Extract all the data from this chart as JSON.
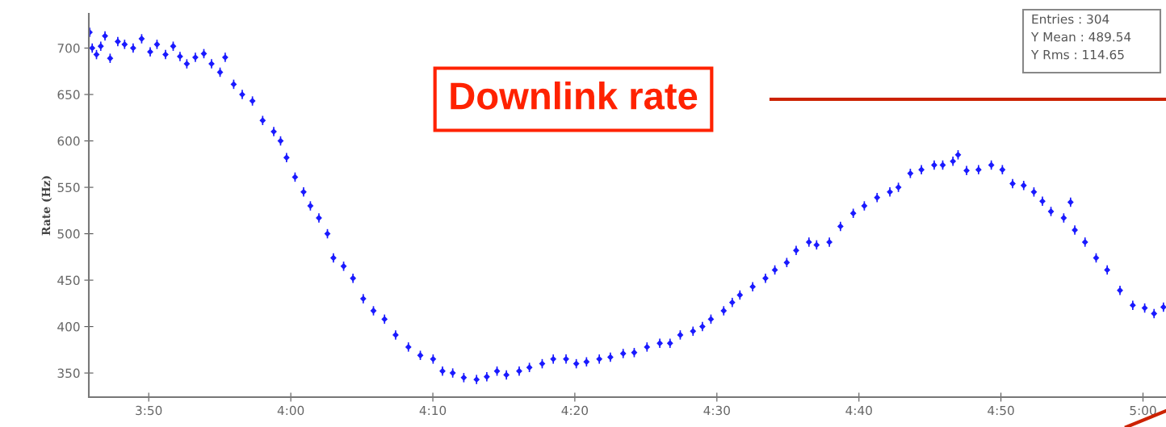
{
  "chart_data": {
    "type": "scatter",
    "ylabel": "Rate (Hz)",
    "annotations": [
      "Downlink rate",
      "Entries : 304",
      "Y Mean : 489.54",
      "Y Rms : 114.65"
    ],
    "xlim": [
      3.763,
      5.027
    ],
    "ylim": [
      324,
      737
    ],
    "xticks": [
      {
        "value": 3.8333,
        "label": "3:50"
      },
      {
        "value": 4.0,
        "label": "4:00"
      },
      {
        "value": 4.1667,
        "label": "4:10"
      },
      {
        "value": 4.3333,
        "label": "4:20"
      },
      {
        "value": 4.5,
        "label": "4:30"
      },
      {
        "value": 4.6667,
        "label": "4:40"
      },
      {
        "value": 4.8333,
        "label": "4:50"
      },
      {
        "value": 5.0,
        "label": "5:00"
      }
    ],
    "yticks": [
      350,
      400,
      450,
      500,
      550,
      600,
      650,
      700
    ],
    "grid": false,
    "marker": "diamond",
    "series": [
      {
        "color": "#1a1aff",
        "x": [
          3.764,
          3.767,
          3.772,
          3.777,
          3.782,
          3.788,
          3.797,
          3.805,
          3.815,
          3.825,
          3.835,
          3.843,
          3.853,
          3.862,
          3.87,
          3.878,
          3.888,
          3.898,
          3.907,
          3.917,
          3.923,
          3.933,
          3.943,
          3.955,
          3.967,
          3.98,
          3.988,
          3.995,
          4.005,
          4.015,
          4.023,
          4.033,
          4.043,
          4.05,
          4.062,
          4.073,
          4.085,
          4.097,
          4.11,
          4.123,
          4.138,
          4.152,
          4.167,
          4.178,
          4.19,
          4.203,
          4.218,
          4.23,
          4.242,
          4.253,
          4.268,
          4.28,
          4.295,
          4.308,
          4.323,
          4.335,
          4.347,
          4.362,
          4.375,
          4.39,
          4.403,
          4.418,
          4.433,
          4.445,
          4.457,
          4.472,
          4.483,
          4.493,
          4.508,
          4.518,
          4.527,
          4.542,
          4.557,
          4.568,
          4.582,
          4.593,
          4.608,
          4.617,
          4.632,
          4.645,
          4.66,
          4.673,
          4.688,
          4.703,
          4.713,
          4.727,
          4.74,
          4.755,
          4.765,
          4.777,
          4.783,
          4.793,
          4.807,
          4.822,
          4.835,
          4.847,
          4.86,
          4.872,
          4.882,
          4.892,
          4.907,
          4.915,
          4.92,
          4.932,
          4.945,
          4.958,
          4.973,
          4.988,
          5.002,
          5.013,
          5.024
        ],
        "values": [
          717,
          700,
          693,
          702,
          713,
          689,
          707,
          704,
          700,
          710,
          696,
          704,
          693,
          702,
          691,
          683,
          690,
          694,
          683,
          674,
          690,
          661,
          650,
          643,
          622,
          610,
          600,
          582,
          561,
          545,
          530,
          517,
          500,
          474,
          465,
          452,
          430,
          417,
          408,
          391,
          378,
          369,
          365,
          352,
          350,
          345,
          343,
          346,
          352,
          348,
          352,
          356,
          360,
          365,
          365,
          360,
          362,
          365,
          367,
          371,
          372,
          378,
          382,
          382,
          391,
          395,
          400,
          408,
          417,
          426,
          434,
          443,
          452,
          461,
          469,
          482,
          491,
          488,
          491,
          508,
          522,
          530,
          539,
          545,
          550,
          565,
          569,
          574,
          574,
          578,
          585,
          568,
          569,
          574,
          569,
          554,
          552,
          545,
          535,
          524,
          517,
          534,
          504,
          491,
          474,
          461,
          439,
          423,
          420,
          414,
          421
        ],
        "errors": [
          5,
          5,
          5,
          5,
          5,
          5,
          5,
          5,
          5,
          5,
          5,
          5,
          5,
          5,
          5,
          5,
          5,
          5,
          5,
          5,
          5,
          5,
          5,
          5,
          5,
          5,
          5,
          5,
          5,
          5,
          5,
          5,
          5,
          5,
          5,
          5,
          5,
          5,
          5,
          5,
          5,
          5,
          5,
          5,
          5,
          5,
          5,
          5,
          5,
          5,
          5,
          5,
          5,
          5,
          5,
          5,
          5,
          5,
          5,
          5,
          5,
          5,
          5,
          5,
          5,
          5,
          5,
          5,
          5,
          5,
          5,
          5,
          5,
          5,
          5,
          5,
          5,
          5,
          5,
          5,
          5,
          5,
          5,
          5,
          5,
          5,
          5,
          5,
          5,
          5,
          5,
          5,
          5,
          5,
          5,
          5,
          5,
          5,
          5,
          5,
          5,
          5,
          5,
          5,
          5,
          5,
          5,
          5,
          5,
          5,
          5
        ]
      }
    ]
  }
}
